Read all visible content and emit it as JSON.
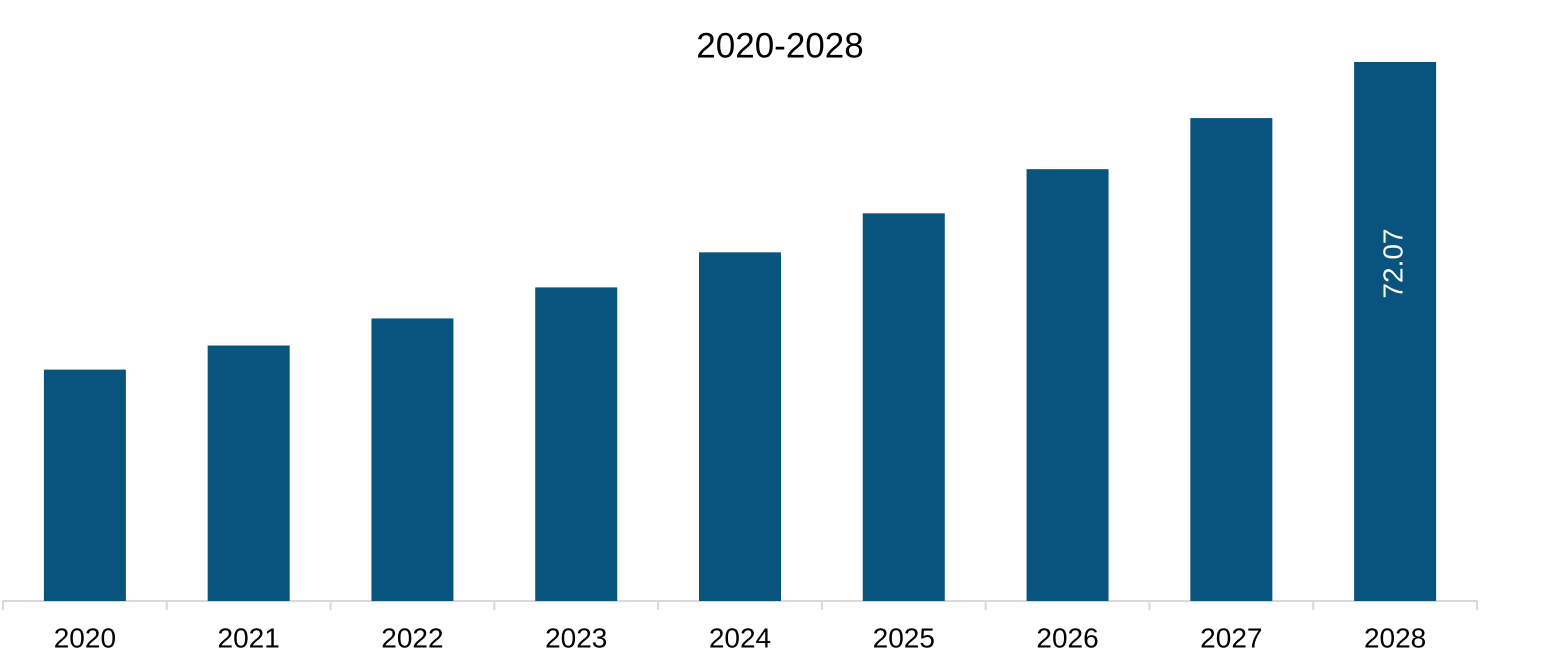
{
  "chart_data": {
    "type": "bar",
    "title": "2020-2028",
    "categories": [
      "2020",
      "2021",
      "2022",
      "2023",
      "2024",
      "2025",
      "2026",
      "2027",
      "2028"
    ],
    "values": [
      30.94,
      34.16,
      37.78,
      41.93,
      46.62,
      51.84,
      57.74,
      64.57,
      72.07
    ],
    "value_labels": [
      null,
      null,
      null,
      null,
      null,
      null,
      null,
      null,
      "72.07"
    ],
    "color": "#09537f"
  }
}
